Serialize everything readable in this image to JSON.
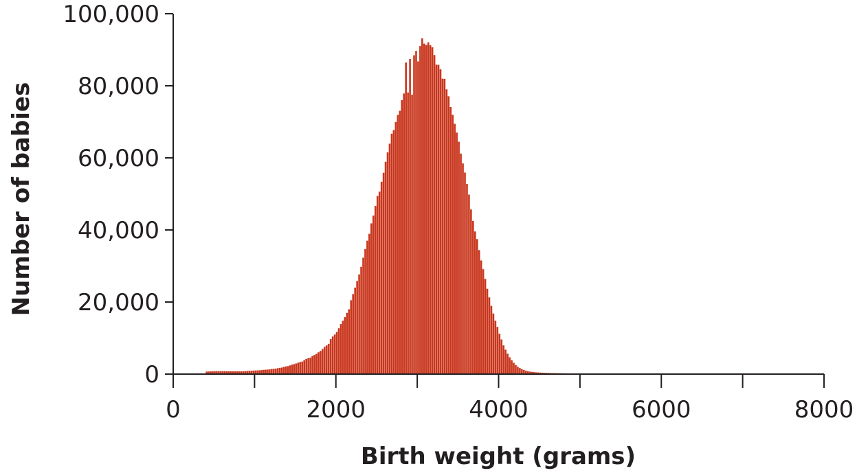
{
  "chart_data": {
    "type": "bar",
    "title": "",
    "xlabel": "Birth weight (grams)",
    "ylabel": "Number of babies",
    "xlim": [
      0,
      8000
    ],
    "ylim": [
      0,
      100000
    ],
    "x_ticks": [
      0,
      2000,
      4000,
      6000,
      8000
    ],
    "x_tick_labels": [
      "0",
      "2000",
      "4000",
      "6000",
      "8000"
    ],
    "x_minor_ticks": [
      1000,
      3000,
      5000,
      7000
    ],
    "y_ticks": [
      0,
      20000,
      40000,
      60000,
      80000,
      100000
    ],
    "y_tick_labels": [
      "0",
      "20,000",
      "40,000",
      "60,000",
      "80,000",
      "100,000"
    ],
    "grid": false,
    "legend": "none",
    "bar_color": "#c9361d",
    "bin_width": 25,
    "bin_start": 400,
    "values": [
      700,
      720,
      760,
      790,
      800,
      820,
      820,
      830,
      820,
      810,
      800,
      790,
      780,
      770,
      770,
      760,
      760,
      770,
      790,
      830,
      880,
      920,
      950,
      980,
      1010,
      1030,
      1060,
      1120,
      1190,
      1230,
      1260,
      1310,
      1410,
      1480,
      1520,
      1650,
      1740,
      1830,
      1980,
      2130,
      2220,
      2410,
      2630,
      2770,
      2950,
      3170,
      3360,
      3480,
      3840,
      4190,
      4440,
      4550,
      5040,
      5290,
      5620,
      6050,
      6440,
      6980,
      7580,
      7960,
      8410,
      9720,
      10430,
      10980,
      11690,
      12720,
      13880,
      14800,
      15800,
      16990,
      18000,
      20500,
      22220,
      24000,
      25850,
      27660,
      29770,
      32290,
      34700,
      37010,
      38930,
      41820,
      43990,
      46650,
      49440,
      50630,
      53370,
      55870,
      58910,
      61520,
      63930,
      66710,
      67730,
      69960,
      71930,
      73080,
      76020,
      77860,
      86460,
      78160,
      87430,
      77550,
      88470,
      89690,
      86770,
      91020,
      93180,
      91700,
      91310,
      92080,
      91270,
      90700,
      88530,
      85870,
      85830,
      84590,
      81970,
      81930,
      79010,
      77090,
      74100,
      71970,
      69460,
      67020,
      64470,
      61190,
      58460,
      55930,
      52760,
      49810,
      45690,
      42510,
      39580,
      37470,
      34410,
      31530,
      29100,
      26420,
      23660,
      21280,
      18920,
      16800,
      14820,
      13100,
      11210,
      9610,
      7970,
      6780,
      5660,
      4670,
      3830,
      3130,
      2520,
      2040,
      1690,
      1370,
      1150,
      960,
      820,
      700,
      610,
      540,
      490,
      450,
      410,
      380,
      360,
      340,
      320,
      300,
      280,
      270,
      260,
      250,
      240,
      230,
      220,
      210,
      200,
      190,
      180,
      170,
      160,
      150,
      140,
      130,
      120,
      110,
      100,
      90,
      80,
      70,
      60,
      50,
      40,
      30,
      20,
      15,
      10
    ]
  }
}
